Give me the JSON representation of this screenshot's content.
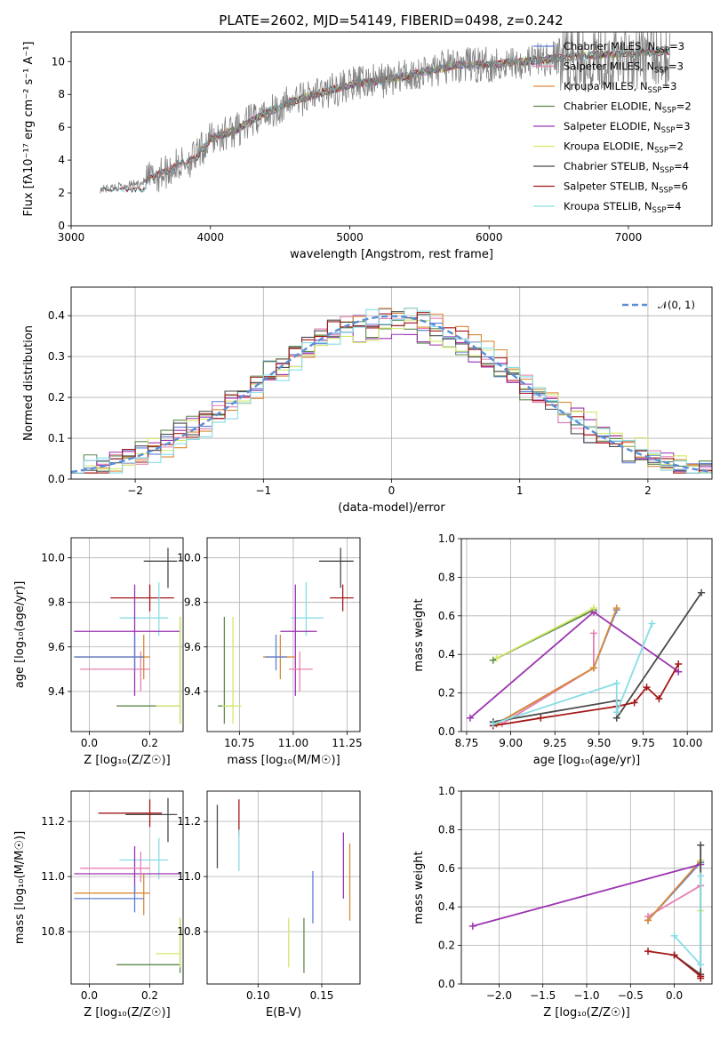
{
  "colors": {
    "chabrier_miles": "#5b7fd6",
    "salpeter_miles": "#e77fb2",
    "kroupa_miles": "#d98a36",
    "chabrier_elodie": "#5e8a4e",
    "salpeter_elodie": "#9b34b0",
    "kroupa_elodie": "#d4e86a",
    "chabrier_stelib": "#4b4b4b",
    "salpeter_stelib": "#a31919",
    "kroupa_stelib": "#86dde6",
    "normal": "#5a8ed6",
    "spectrum": "#808080"
  },
  "chart_data": [
    {
      "id": "spectrum",
      "type": "line",
      "title": "PLATE=2602, MJD=54149, FIBERID=0498, z=0.242",
      "xlabel": "wavelength [Angstrom, rest frame]",
      "ylabel": "Flux [fλ10⁻¹⁷ erg cm⁻² s⁻¹ A⁻¹]",
      "xlim": [
        3000,
        7600
      ],
      "ylim": [
        0,
        11.8
      ],
      "xticks": [
        "3000",
        "4000",
        "5000",
        "6000",
        "7000"
      ],
      "yticks": [
        "0",
        "2",
        "4",
        "6",
        "8",
        "10"
      ],
      "legend": [
        "Chabrier MILES, N_SSP=3",
        "Salpeter MILES, N_SSP=3",
        "Kroupa MILES, N_SSP=3",
        "Chabrier ELODIE, N_SSP=2",
        "Salpeter ELODIE, N_SSP=3",
        "Kroupa ELODIE, N_SSP=2",
        "Chabrier STELIB, N_SSP=4",
        "Salpeter STELIB, N_SSP=6",
        "Kroupa STELIB, N_SSP=4"
      ],
      "legend_placement": "top-right",
      "continuum": [
        [
          3200,
          2.2
        ],
        [
          3500,
          2.6
        ],
        [
          3700,
          3.4
        ],
        [
          3900,
          4.2
        ],
        [
          4000,
          5.3
        ],
        [
          4200,
          5.9
        ],
        [
          4400,
          6.9
        ],
        [
          4600,
          7.6
        ],
        [
          4800,
          8.1
        ],
        [
          5000,
          8.6
        ],
        [
          5200,
          8.8
        ],
        [
          5400,
          9.1
        ],
        [
          5600,
          9.5
        ],
        [
          5800,
          9.8
        ],
        [
          6000,
          9.8
        ],
        [
          6200,
          10.0
        ],
        [
          6400,
          10.1
        ],
        [
          6600,
          10.3
        ],
        [
          6800,
          10.4
        ],
        [
          7000,
          10.5
        ],
        [
          7300,
          10.6
        ]
      ]
    },
    {
      "id": "residuals",
      "type": "histogram",
      "xlabel": "(data-model)/error",
      "ylabel": "Normed distribution",
      "xlim": [
        -2.5,
        2.5
      ],
      "ylim": [
        0,
        0.47
      ],
      "xticks": [
        "−2",
        "−1",
        "0",
        "1",
        "2"
      ],
      "yticks": [
        "0.0",
        "0.1",
        "0.2",
        "0.3",
        "0.4"
      ],
      "legend": [
        "𝒩(0, 1)"
      ],
      "legend_placement": "top-right",
      "grid": true
    },
    {
      "id": "z_age",
      "type": "errorbar",
      "xlabel": "Z [log₁₀(Z/Z☉)]",
      "ylabel": "age  [log₁₀(age/yr)]",
      "xlim": [
        -0.06,
        0.31
      ],
      "ylim": [
        9.22,
        10.09
      ],
      "xticks": [
        "0.0",
        "0.2"
      ],
      "yticks": [
        "9.4",
        "9.6",
        "9.8",
        "10.0"
      ],
      "grid": true,
      "points": [
        {
          "model": "chabrier_stelib",
          "x": 0.26,
          "y": 9.985,
          "x_err": [
            0.08,
            0.03
          ],
          "y_err": [
            0.12,
            0.06
          ]
        },
        {
          "model": "salpeter_stelib",
          "x": 0.2,
          "y": 9.82,
          "x_err": [
            0.13,
            0.08
          ],
          "y_err": [
            0.06,
            0.06
          ]
        },
        {
          "model": "kroupa_stelib",
          "x": 0.23,
          "y": 9.73,
          "x_err": [
            0.13,
            0.03
          ],
          "y_err": [
            0.08,
            0.16
          ]
        },
        {
          "model": "salpeter_elodie",
          "x": 0.15,
          "y": 9.67,
          "x_err": [
            0.2,
            0.15
          ],
          "y_err": [
            0.29,
            0.21
          ]
        },
        {
          "model": "salpeter_miles",
          "x": 0.17,
          "y": 9.5,
          "x_err": [
            0.2,
            0.03
          ],
          "y_err": [
            0.1,
            0.08
          ]
        },
        {
          "model": "kroupa_miles",
          "x": 0.18,
          "y": 9.555,
          "x_err": [
            0.23,
            0.02
          ],
          "y_err": [
            0.1,
            0.1
          ]
        },
        {
          "model": "chabrier_miles",
          "x": 0.15,
          "y": 9.555,
          "x_err": [
            0.2,
            0.03
          ],
          "y_err": [
            0.06,
            0.1
          ]
        },
        {
          "model": "chabrier_elodie",
          "x": 0.3,
          "y": 9.335,
          "x_err": [
            0.21,
            0.0
          ],
          "y_err": [
            0.08,
            0.4
          ]
        },
        {
          "model": "kroupa_elodie",
          "x": 0.3,
          "y": 9.335,
          "x_err": [
            0.08,
            0.0
          ],
          "y_err": [
            0.08,
            0.4
          ]
        }
      ]
    },
    {
      "id": "mass_age",
      "type": "errorbar",
      "xlabel": "mass [log₁₀(M/M☉)]",
      "xlim": [
        10.6,
        11.31
      ],
      "ylim": [
        9.22,
        10.09
      ],
      "xticks": [
        "10.75",
        "11.00",
        "11.25"
      ],
      "yticks": [
        "9.4",
        "9.6",
        "9.8",
        "10.0"
      ],
      "grid": true,
      "points": [
        {
          "model": "chabrier_stelib",
          "x": 11.22,
          "y": 9.985,
          "x_err": [
            0.1,
            0.06
          ],
          "y_err": [
            0.12,
            0.06
          ]
        },
        {
          "model": "salpeter_stelib",
          "x": 11.23,
          "y": 9.82,
          "x_err": [
            0.06,
            0.05
          ],
          "y_err": [
            0.06,
            0.06
          ]
        },
        {
          "model": "kroupa_stelib",
          "x": 11.06,
          "y": 9.73,
          "x_err": [
            0.07,
            0.08
          ],
          "y_err": [
            0.08,
            0.16
          ]
        },
        {
          "model": "salpeter_elodie",
          "x": 11.01,
          "y": 9.67,
          "x_err": [
            0.07,
            0.1
          ],
          "y_err": [
            0.29,
            0.21
          ]
        },
        {
          "model": "salpeter_miles",
          "x": 11.03,
          "y": 9.5,
          "x_err": [
            0.05,
            0.06
          ],
          "y_err": [
            0.1,
            0.08
          ]
        },
        {
          "model": "kroupa_miles",
          "x": 10.94,
          "y": 9.555,
          "x_err": [
            0.08,
            0.07
          ],
          "y_err": [
            0.1,
            0.1
          ]
        },
        {
          "model": "chabrier_miles",
          "x": 10.92,
          "y": 9.555,
          "x_err": [
            0.05,
            0.05
          ],
          "y_err": [
            0.06,
            0.1
          ]
        },
        {
          "model": "chabrier_elodie",
          "x": 10.68,
          "y": 9.335,
          "x_err": [
            0.03,
            0.04
          ],
          "y_err": [
            0.08,
            0.4
          ]
        },
        {
          "model": "kroupa_elodie",
          "x": 10.72,
          "y": 9.335,
          "x_err": [
            0.05,
            0.04
          ],
          "y_err": [
            0.08,
            0.4
          ]
        }
      ]
    },
    {
      "id": "weight_age",
      "type": "line",
      "xlabel": "age  [log₁₀(age/yr)]",
      "ylabel": "mass weight",
      "xlim": [
        8.72,
        10.14
      ],
      "ylim": [
        0,
        1
      ],
      "xticks": [
        "8.75",
        "9.00",
        "9.25",
        "9.50",
        "9.75",
        "10.00"
      ],
      "yticks": [
        "0.0",
        "0.2",
        "0.4",
        "0.6",
        "0.8",
        "1.0"
      ],
      "grid": true,
      "series": [
        {
          "model": "chabrier_miles",
          "x": [
            8.92,
            9.47,
            9.6
          ],
          "y": [
            0.04,
            0.33,
            0.63
          ]
        },
        {
          "model": "salpeter_miles",
          "x": [
            8.95,
            9.47,
            9.47
          ],
          "y": [
            0.04,
            0.33,
            0.51
          ]
        },
        {
          "model": "kroupa_miles",
          "x": [
            8.92,
            9.47,
            9.6
          ],
          "y": [
            0.04,
            0.33,
            0.64
          ]
        },
        {
          "model": "chabrier_elodie",
          "x": [
            8.9,
            9.47
          ],
          "y": [
            0.37,
            0.63
          ]
        },
        {
          "model": "salpeter_elodie",
          "x": [
            8.77,
            9.47,
            9.95
          ],
          "y": [
            0.07,
            0.62,
            0.31
          ]
        },
        {
          "model": "kroupa_elodie",
          "x": [
            8.92,
            9.47
          ],
          "y": [
            0.38,
            0.64
          ]
        },
        {
          "model": "chabrier_stelib",
          "x": [
            8.9,
            9.6,
            9.6,
            10.08
          ],
          "y": [
            0.05,
            0.16,
            0.07,
            0.72
          ]
        },
        {
          "model": "salpeter_stelib",
          "x": [
            8.9,
            9.17,
            9.6,
            9.7,
            9.77,
            9.84,
            9.95
          ],
          "y": [
            0.03,
            0.07,
            0.13,
            0.15,
            0.23,
            0.17,
            0.35
          ]
        },
        {
          "model": "kroupa_stelib",
          "x": [
            8.9,
            9.6,
            9.6,
            9.8
          ],
          "y": [
            0.04,
            0.25,
            0.1,
            0.56
          ]
        }
      ]
    },
    {
      "id": "z_mass",
      "type": "errorbar",
      "xlabel": "Z [log₁₀(Z/Z☉)]",
      "ylabel": "mass [log₁₀(M/M☉)]",
      "xlim": [
        -0.06,
        0.31
      ],
      "ylim": [
        10.61,
        11.31
      ],
      "xticks": [
        "0.0",
        "0.2"
      ],
      "yticks": [
        "10.8",
        "11.0",
        "11.2"
      ],
      "grid": true,
      "points": [
        {
          "model": "chabrier_stelib",
          "x": 0.26,
          "y": 11.225,
          "x_err": [
            0.14,
            0.03
          ],
          "y_err": [
            0.1,
            0.06
          ]
        },
        {
          "model": "salpeter_stelib",
          "x": 0.2,
          "y": 11.23,
          "x_err": [
            0.17,
            0.04
          ],
          "y_err": [
            0.05,
            0.05
          ]
        },
        {
          "model": "kroupa_stelib",
          "x": 0.23,
          "y": 11.06,
          "x_err": [
            0.13,
            0.03
          ],
          "y_err": [
            0.07,
            0.08
          ]
        },
        {
          "model": "salpeter_elodie",
          "x": 0.15,
          "y": 11.01,
          "x_err": [
            0.2,
            0.15
          ],
          "y_err": [
            0.07,
            0.1
          ]
        },
        {
          "model": "salpeter_miles",
          "x": 0.17,
          "y": 11.03,
          "x_err": [
            0.2,
            0.03
          ],
          "y_err": [
            0.05,
            0.06
          ]
        },
        {
          "model": "kroupa_miles",
          "x": 0.18,
          "y": 10.94,
          "x_err": [
            0.23,
            0.02
          ],
          "y_err": [
            0.08,
            0.07
          ]
        },
        {
          "model": "chabrier_miles",
          "x": 0.15,
          "y": 10.92,
          "x_err": [
            0.2,
            0.03
          ],
          "y_err": [
            0.05,
            0.05
          ]
        },
        {
          "model": "chabrier_elodie",
          "x": 0.3,
          "y": 10.68,
          "x_err": [
            0.21,
            0.0
          ],
          "y_err": [
            0.03,
            0.17
          ]
        },
        {
          "model": "kroupa_elodie",
          "x": 0.3,
          "y": 10.72,
          "x_err": [
            0.08,
            0.0
          ],
          "y_err": [
            0.05,
            0.13
          ]
        }
      ]
    },
    {
      "id": "ebv_mass",
      "type": "errorbar",
      "xlabel": "E(B-V)",
      "xlim": [
        0.06,
        0.18
      ],
      "ylim": [
        10.61,
        11.31
      ],
      "xticks": [
        "0.10",
        "0.15"
      ],
      "yticks": [
        "10.8",
        "11.0",
        "11.2"
      ],
      "grid": true,
      "points": [
        {
          "model": "chabrier_stelib",
          "x": 0.068,
          "y": 11.14,
          "x_err": [
            0,
            0
          ],
          "y_err": [
            0.11,
            0.12
          ]
        },
        {
          "model": "salpeter_stelib",
          "x": 0.085,
          "y": 11.23,
          "x_err": [
            0,
            0
          ],
          "y_err": [
            0.08,
            0.05
          ]
        },
        {
          "model": "kroupa_stelib",
          "x": 0.085,
          "y": 11.1,
          "x_err": [
            0,
            0
          ],
          "y_err": [
            0.08,
            0.07
          ]
        },
        {
          "model": "kroupa_elodie",
          "x": 0.124,
          "y": 10.76,
          "x_err": [
            0,
            0
          ],
          "y_err": [
            0.09,
            0.09
          ]
        },
        {
          "model": "chabrier_elodie",
          "x": 0.136,
          "y": 10.75,
          "x_err": [
            0,
            0
          ],
          "y_err": [
            0.1,
            0.1
          ]
        },
        {
          "model": "chabrier_miles",
          "x": 0.143,
          "y": 10.93,
          "x_err": [
            0,
            0
          ],
          "y_err": [
            0.1,
            0.09
          ]
        },
        {
          "model": "salpeter_elodie",
          "x": 0.167,
          "y": 11.03,
          "x_err": [
            0,
            0
          ],
          "y_err": [
            0.11,
            0.13
          ]
        },
        {
          "model": "kroupa_miles",
          "x": 0.172,
          "y": 10.98,
          "x_err": [
            0,
            0
          ],
          "y_err": [
            0.14,
            0.14
          ]
        }
      ]
    },
    {
      "id": "weight_z",
      "type": "line",
      "xlabel": "Z [log₁₀(Z/Z☉)]",
      "ylabel": "mass weight",
      "xlim": [
        -2.43,
        0.43
      ],
      "ylim": [
        0,
        1
      ],
      "xticks": [
        "−2.0",
        "−1.5",
        "−1.0",
        "−0.5",
        "0.0"
      ],
      "yticks": [
        "0.0",
        "0.2",
        "0.4",
        "0.6",
        "0.8",
        "1.0"
      ],
      "grid": true,
      "series": [
        {
          "model": "chabrier_miles",
          "x": [
            -0.3,
            0.3
          ],
          "y": [
            0.33,
            0.63
          ]
        },
        {
          "model": "salpeter_miles",
          "x": [
            -0.3,
            0.3
          ],
          "y": [
            0.35,
            0.51
          ]
        },
        {
          "model": "kroupa_miles",
          "x": [
            -0.3,
            0.3
          ],
          "y": [
            0.33,
            0.64
          ]
        },
        {
          "model": "salpeter_elodie",
          "x": [
            -2.3,
            0.3
          ],
          "y": [
            0.3,
            0.62
          ]
        },
        {
          "model": "kroupa_elodie",
          "x": [
            0.3,
            0.3
          ],
          "y": [
            0.38,
            0.64
          ]
        },
        {
          "model": "chabrier_stelib",
          "x": [
            0.0,
            0.3,
            0.3
          ],
          "y": [
            0.15,
            0.05,
            0.72
          ]
        },
        {
          "model": "salpeter_stelib",
          "x": [
            -0.3,
            0.0,
            0.3,
            0.3
          ],
          "y": [
            0.17,
            0.15,
            0.04,
            0.03
          ]
        },
        {
          "model": "kroupa_stelib",
          "x": [
            0.0,
            0.3,
            0.3
          ],
          "y": [
            0.25,
            0.1,
            0.56
          ]
        }
      ]
    }
  ]
}
